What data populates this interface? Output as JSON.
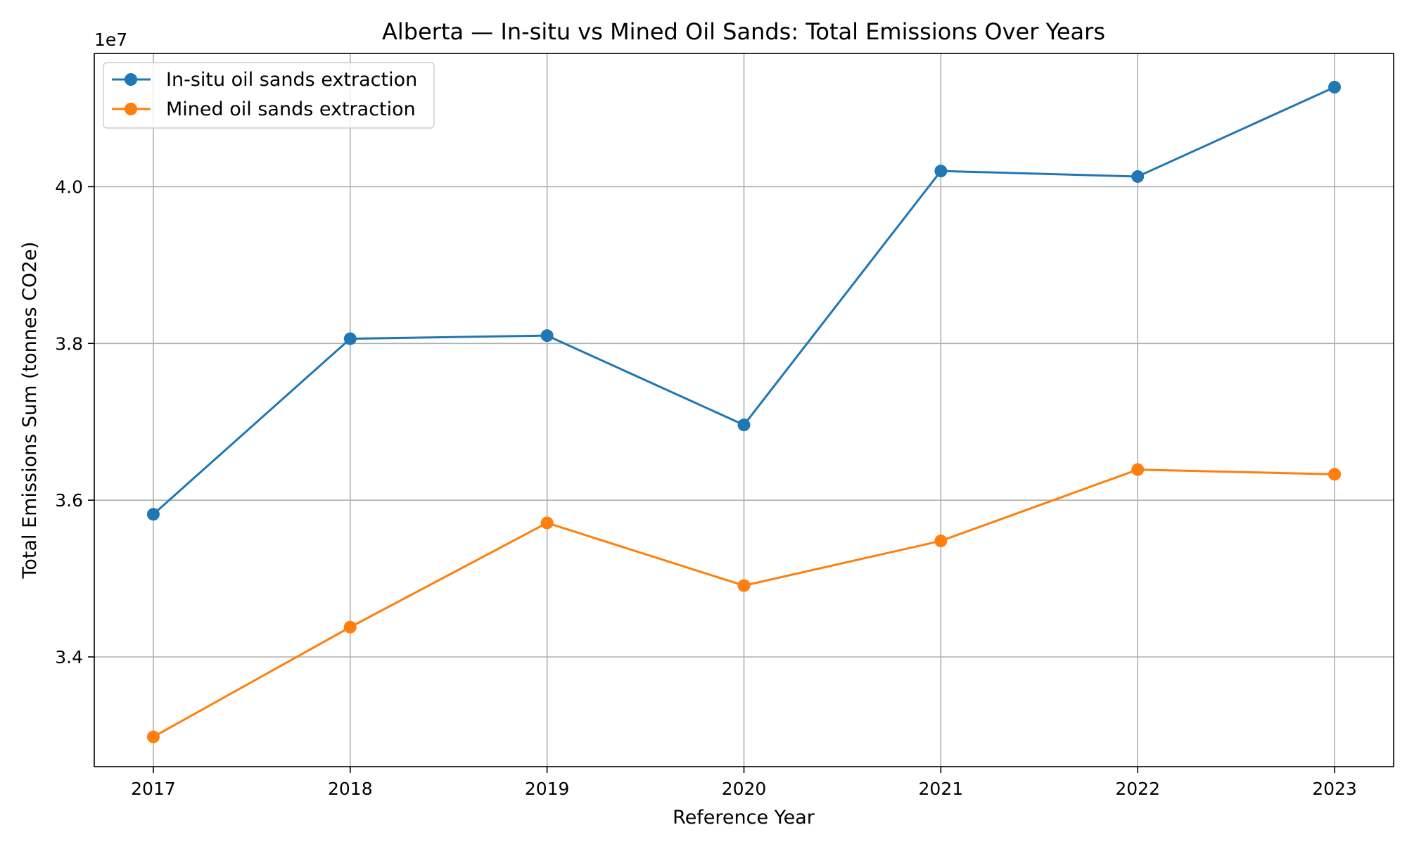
{
  "chart_data": {
    "type": "line",
    "title": "Alberta — In-situ vs Mined Oil Sands: Total Emissions Over Years",
    "xlabel": "Reference Year",
    "ylabel": "Total Emissions Sum (tonnes CO2e)",
    "y_offset_label": "1e7",
    "y_scale": 10000000,
    "x": [
      2017,
      2018,
      2019,
      2020,
      2021,
      2022,
      2023
    ],
    "xlim": [
      2016.7,
      2023.3
    ],
    "ylim": [
      32600000,
      41700000
    ],
    "yticks": [
      34000000,
      36000000,
      38000000,
      40000000
    ],
    "ytick_labels": [
      "3.4",
      "3.6",
      "3.8",
      "4.0"
    ],
    "grid": true,
    "legend_position": "upper-left",
    "series": [
      {
        "name": "In-situ oil sands extraction",
        "color": "#1f77b4",
        "values": [
          35820000,
          38060000,
          38100000,
          36960000,
          40200000,
          40130000,
          41270000
        ]
      },
      {
        "name": "Mined oil sands extraction",
        "color": "#ff7f0e",
        "values": [
          32980000,
          34380000,
          35710000,
          34910000,
          35480000,
          36390000,
          36330000
        ]
      }
    ]
  }
}
